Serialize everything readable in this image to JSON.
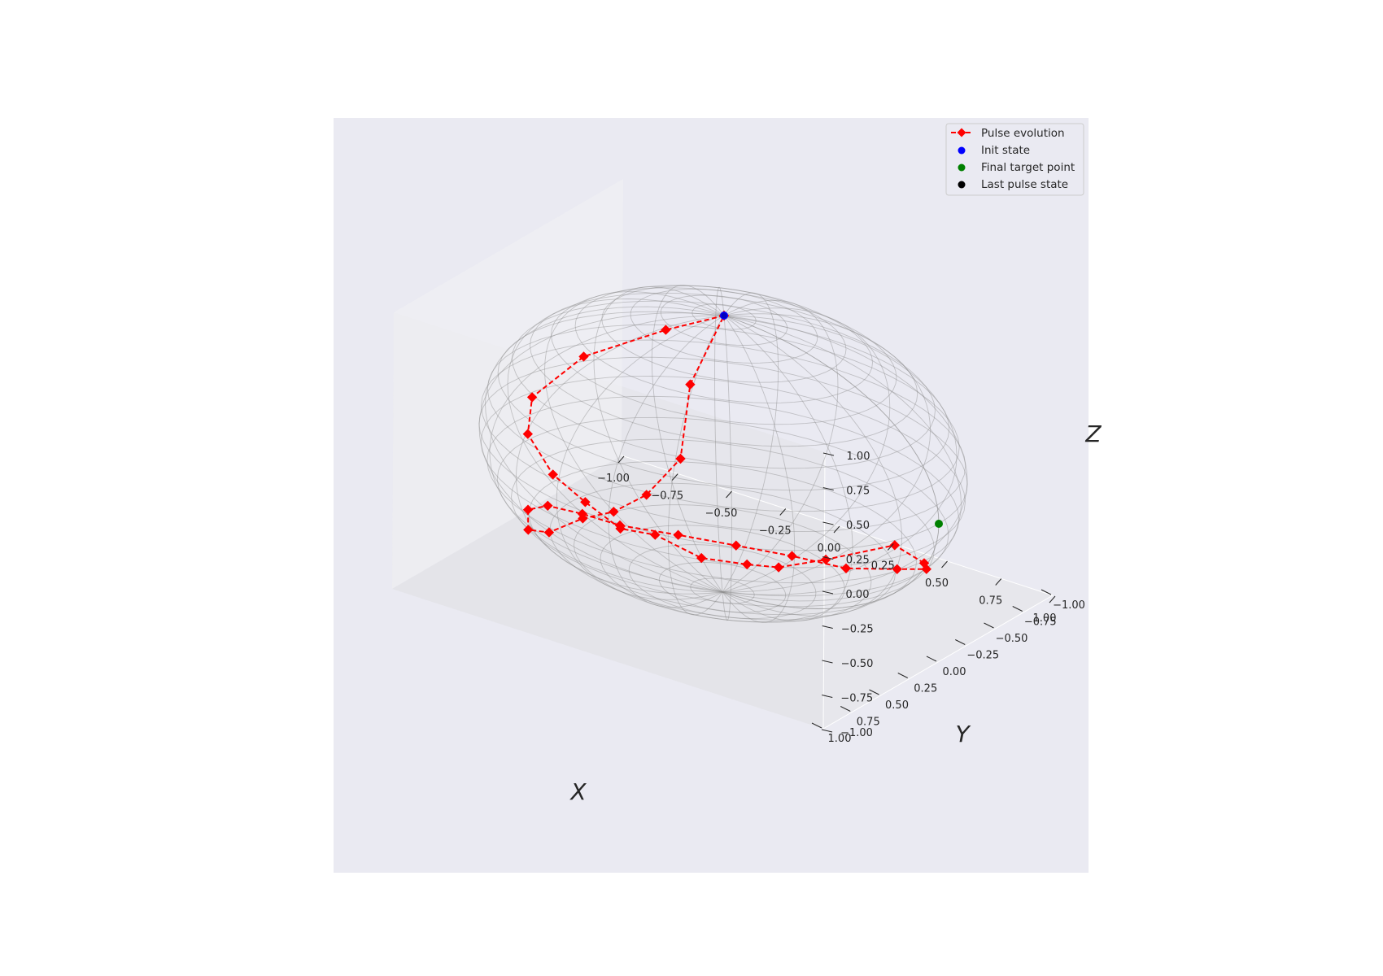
{
  "chart_data": {
    "type": "scatter",
    "projection": "3d",
    "xlabel": "X",
    "ylabel": "Y",
    "zlabel": "Z",
    "xlim": [
      -1.0,
      1.0
    ],
    "ylim": [
      -1.0,
      1.0
    ],
    "zlim": [
      -1.0,
      1.0
    ],
    "x_ticks": [
      "−1.00",
      "−0.75",
      "−0.50",
      "−0.25",
      "0.00",
      "0.25",
      "0.50",
      "0.75",
      "1.00"
    ],
    "y_ticks": [
      "−1.00",
      "−0.75",
      "−0.50",
      "−0.25",
      "0.00",
      "0.25",
      "0.50",
      "0.75",
      "1.00"
    ],
    "z_ticks": [
      "−1.00",
      "−0.75",
      "−0.50",
      "−0.25",
      "0.00",
      "0.25",
      "0.50",
      "0.75",
      "1.00"
    ],
    "grid": true,
    "legend_position": "top-right",
    "colors": {
      "background": "#eaeaf2",
      "pulse": "#ff0000",
      "init": "#0000ff",
      "target": "#008000",
      "last": "#000000"
    },
    "legend": [
      {
        "label": "Pulse evolution",
        "marker": "diamond-line",
        "color": "#ff0000"
      },
      {
        "label": "Init state",
        "marker": "dot",
        "color": "#0000ff"
      },
      {
        "label": "Final target point",
        "marker": "dot",
        "color": "#008000"
      },
      {
        "label": "Last pulse state",
        "marker": "dot",
        "color": "#000000"
      }
    ],
    "series": [
      {
        "name": "Pulse evolution",
        "points": [
          [
            0.0,
            0.0,
            1.0
          ],
          [
            -0.131,
            0.261,
            0.956
          ],
          [
            -0.373,
            0.521,
            0.766
          ],
          [
            -0.513,
            0.705,
            0.49
          ],
          [
            -0.466,
            0.83,
            0.308
          ],
          [
            -0.288,
            0.944,
            0.16
          ],
          [
            -0.113,
            0.991,
            0.072
          ],
          [
            0.054,
            0.998,
            -0.032
          ],
          [
            0.205,
            0.979,
            -0.01
          ],
          [
            0.386,
            0.915,
            -0.117
          ],
          [
            0.55,
            0.826,
            -0.123
          ],
          [
            0.654,
            0.745,
            -0.131
          ],
          [
            0.796,
            0.601,
            -0.072
          ],
          [
            0.954,
            0.298,
            -0.034
          ],
          [
            0.958,
            0.047,
            -0.283
          ],
          [
            0.836,
            -0.204,
            -0.509
          ],
          [
            0.615,
            -0.365,
            -0.699
          ],
          [
            0.358,
            -0.404,
            -0.842
          ],
          [
            0.094,
            -0.429,
            -0.898
          ],
          [
            -0.138,
            -0.378,
            -0.915
          ],
          [
            -0.351,
            -0.273,
            -0.896
          ],
          [
            -0.533,
            -0.107,
            -0.839
          ],
          [
            -0.649,
            0.003,
            -0.761
          ],
          [
            -0.728,
            0.157,
            -0.668
          ],
          [
            -0.72,
            0.345,
            -0.602
          ],
          [
            -0.562,
            0.64,
            -0.525
          ],
          [
            -0.332,
            0.892,
            -0.306
          ],
          [
            -0.124,
            0.991,
            -0.052
          ],
          [
            0.022,
            0.997,
            0.073
          ],
          [
            0.153,
            0.958,
            0.243
          ],
          [
            0.245,
            0.836,
            0.492
          ],
          [
            0.132,
            0.542,
            0.83
          ],
          [
            0.0,
            0.0,
            1.0
          ]
        ]
      },
      {
        "name": "Init state",
        "points": [
          [
            0.0,
            0.0,
            1.0
          ]
        ]
      },
      {
        "name": "Final target point",
        "points": [
          [
            1.0,
            0.0,
            0.0
          ]
        ]
      },
      {
        "name": "Last pulse state",
        "points": [
          [
            0.0,
            0.0,
            1.0
          ]
        ]
      }
    ]
  }
}
